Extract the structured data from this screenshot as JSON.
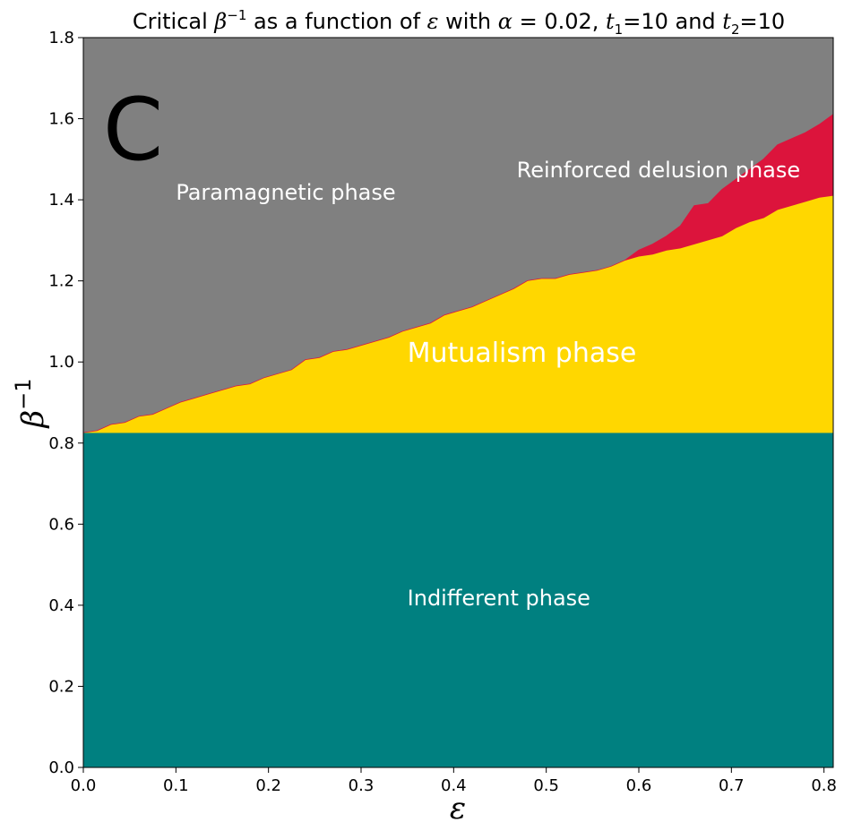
{
  "chart_data": {
    "type": "area",
    "title": {
      "prefix": "Critical ",
      "beta": "β",
      "exp": "−1",
      "mid1": " as a function of ",
      "eps": "ε",
      "mid2": " with ",
      "alpha": "α",
      "mid3": " = 0.02, ",
      "t": "t",
      "sub1": "1",
      "mid4": "=10 and ",
      "sub2": "2",
      "end": "=10"
    },
    "panel_letter": "C",
    "xlabel": "ε",
    "ylabel": {
      "base": "β",
      "exp": "−1"
    },
    "xlim": [
      0.0,
      0.81
    ],
    "ylim": [
      0.0,
      1.8
    ],
    "xticks": [
      "0.0",
      "0.1",
      "0.2",
      "0.3",
      "0.4",
      "0.5",
      "0.6",
      "0.7",
      "0.8"
    ],
    "yticks": [
      "0.0",
      "0.2",
      "0.4",
      "0.6",
      "0.8",
      "1.0",
      "1.2",
      "1.4",
      "1.6",
      "1.8"
    ],
    "grid": false,
    "colors": {
      "paramagnetic": "#808080",
      "reinforced_delusion": "#dc143c",
      "mutualism": "#ffd700",
      "indifferent": "#008080",
      "labels": "#ffffff"
    },
    "indifferent_boundary": 0.825,
    "x": [
      0.0,
      0.015,
      0.03,
      0.045,
      0.06,
      0.075,
      0.09,
      0.105,
      0.12,
      0.135,
      0.15,
      0.165,
      0.18,
      0.195,
      0.21,
      0.225,
      0.24,
      0.255,
      0.27,
      0.285,
      0.3,
      0.315,
      0.33,
      0.345,
      0.36,
      0.375,
      0.39,
      0.405,
      0.42,
      0.435,
      0.45,
      0.465,
      0.48,
      0.495,
      0.51,
      0.525,
      0.54,
      0.555,
      0.57,
      0.585,
      0.6,
      0.615,
      0.63,
      0.645,
      0.66,
      0.675,
      0.69,
      0.705,
      0.72,
      0.735,
      0.75,
      0.765,
      0.78,
      0.795,
      0.81
    ],
    "series": [
      {
        "name": "Mutualism phase upper boundary",
        "values": [
          0.825,
          0.83,
          0.845,
          0.85,
          0.865,
          0.87,
          0.885,
          0.9,
          0.91,
          0.92,
          0.93,
          0.94,
          0.945,
          0.96,
          0.97,
          0.98,
          1.005,
          1.01,
          1.025,
          1.03,
          1.04,
          1.05,
          1.06,
          1.075,
          1.085,
          1.095,
          1.115,
          1.125,
          1.135,
          1.15,
          1.165,
          1.18,
          1.2,
          1.205,
          1.205,
          1.215,
          1.22,
          1.225,
          1.235,
          1.25,
          1.26,
          1.265,
          1.275,
          1.28,
          1.29,
          1.3,
          1.31,
          1.33,
          1.345,
          1.355,
          1.375,
          1.385,
          1.395,
          1.405,
          1.41
        ]
      },
      {
        "name": "Reinforced delusion phase upper boundary",
        "values": [
          0.825,
          0.83,
          0.845,
          0.85,
          0.865,
          0.87,
          0.885,
          0.9,
          0.91,
          0.92,
          0.93,
          0.94,
          0.945,
          0.96,
          0.97,
          0.98,
          1.005,
          1.01,
          1.025,
          1.03,
          1.04,
          1.05,
          1.06,
          1.075,
          1.085,
          1.095,
          1.115,
          1.125,
          1.135,
          1.15,
          1.165,
          1.18,
          1.2,
          1.205,
          1.205,
          1.215,
          1.22,
          1.225,
          1.235,
          1.25,
          1.275,
          1.29,
          1.31,
          1.335,
          1.385,
          1.39,
          1.425,
          1.45,
          1.475,
          1.5,
          1.535,
          1.55,
          1.565,
          1.585,
          1.61
        ]
      }
    ],
    "annotations": {
      "paramagnetic": {
        "text": "Paramagnetic phase",
        "x": 0.1,
        "y": 1.4
      },
      "reinforced": {
        "text": "Reinforced delusion phase",
        "x": 0.468,
        "y": 1.455
      },
      "mutualism": {
        "text": "Mutualism phase",
        "x": 0.35,
        "y": 1.0
      },
      "indifferent": {
        "text": "Indifferent phase",
        "x": 0.35,
        "y": 0.4
      }
    }
  }
}
